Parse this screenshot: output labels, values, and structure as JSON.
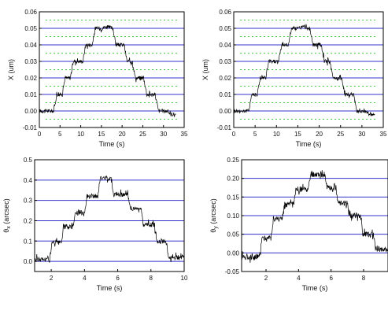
{
  "chart_data": [
    {
      "type": "line",
      "xlabel": "Time (s)",
      "ylabel": "X (um)",
      "xlim": [
        0,
        35
      ],
      "ylim": [
        -0.01,
        0.06
      ],
      "xticks": [
        "0",
        "5",
        "10",
        "15",
        "20",
        "25",
        "30",
        "35"
      ],
      "yticks": [
        "-0.01",
        "0.00",
        "0.01",
        "0.02",
        "0.03",
        "0.04",
        "0.05",
        "0.06"
      ],
      "grid": {
        "major_color": "#3333cc",
        "minor_color": "#44cc44",
        "minor_style": "dotted"
      },
      "line_color": "#000000",
      "noise": 0.0012,
      "series": [
        {
          "x": [
            0,
            3.5,
            4.2,
            5.5,
            6.2,
            7.5,
            8.2,
            10.5,
            11.2,
            12.8,
            13.5,
            15.2,
            16,
            17.8,
            18.5,
            20.5,
            21.2,
            22.5,
            23.2,
            25.2,
            26,
            28,
            28.8,
            31,
            31.7,
            33
          ],
          "y": [
            0.0,
            0.0,
            0.01,
            0.01,
            0.02,
            0.02,
            0.03,
            0.03,
            0.04,
            0.04,
            0.05,
            0.05,
            0.051,
            0.05,
            0.04,
            0.04,
            0.03,
            0.03,
            0.02,
            0.02,
            0.01,
            0.01,
            0.0,
            0.0,
            -0.002,
            -0.002
          ]
        }
      ]
    },
    {
      "type": "line",
      "xlabel": "Time (s)",
      "ylabel": "X (um)",
      "xlim": [
        0,
        35
      ],
      "ylim": [
        -0.01,
        0.06
      ],
      "xticks": [
        "0",
        "5",
        "10",
        "15",
        "20",
        "25",
        "30",
        "35"
      ],
      "yticks": [
        "-0.01",
        "0.00",
        "0.01",
        "0.02",
        "0.03",
        "0.04",
        "0.05",
        "0.06"
      ],
      "grid": {
        "major_color": "#3333cc",
        "minor_color": "#44cc44",
        "minor_style": "dotted"
      },
      "line_color": "#000000",
      "noise": 0.0012,
      "series": [
        {
          "x": [
            0,
            3.5,
            4.2,
            5.5,
            6.2,
            7.5,
            8.2,
            10.5,
            11.2,
            12.8,
            13.5,
            15.2,
            16,
            17.8,
            18.5,
            20.5,
            21.2,
            22.5,
            23.2,
            25.2,
            26,
            28,
            28.8,
            31,
            31.7,
            33
          ],
          "y": [
            0.0,
            0.0,
            0.01,
            0.01,
            0.02,
            0.02,
            0.03,
            0.03,
            0.04,
            0.04,
            0.05,
            0.05,
            0.051,
            0.05,
            0.04,
            0.04,
            0.03,
            0.03,
            0.02,
            0.02,
            0.01,
            0.01,
            0.0,
            0.0,
            -0.002,
            -0.002
          ]
        }
      ]
    },
    {
      "type": "line",
      "xlabel": "Time (s)",
      "ylabel_main": "θ",
      "ylabel_sub": "x",
      "ylabel_rest": " (arcsec)",
      "xlim": [
        1,
        10
      ],
      "ylim": [
        -0.05,
        0.5
      ],
      "xticks": [
        "2",
        "4",
        "6",
        "8",
        "10"
      ],
      "yticks": [
        "0.0",
        "0.1",
        "0.2",
        "0.3",
        "0.4",
        "0.5"
      ],
      "grid": {
        "major_color": "#3333cc"
      },
      "line_color": "#000000",
      "noise": 0.012,
      "series": [
        {
          "x": [
            1,
            1.9,
            2.05,
            2.6,
            2.75,
            3.3,
            3.45,
            4.0,
            4.15,
            4.8,
            4.95,
            5.6,
            5.75,
            6.6,
            6.75,
            7.4,
            7.55,
            8.2,
            8.35,
            8.9,
            9.05,
            10
          ],
          "y": [
            0.01,
            0.01,
            0.09,
            0.09,
            0.17,
            0.17,
            0.24,
            0.24,
            0.32,
            0.32,
            0.41,
            0.41,
            0.33,
            0.33,
            0.26,
            0.26,
            0.18,
            0.18,
            0.1,
            0.1,
            0.02,
            0.02
          ]
        }
      ]
    },
    {
      "type": "line",
      "xlabel": "Time (s)",
      "ylabel_main": "θ",
      "ylabel_sub": "y",
      "ylabel_rest": " (arcsec)",
      "xlim": [
        0.5,
        9.5
      ],
      "ylim": [
        -0.05,
        0.25
      ],
      "xticks": [
        "2",
        "4",
        "6",
        "8"
      ],
      "yticks": [
        "-0.05",
        "0.00",
        "0.05",
        "0.10",
        "0.15",
        "0.20",
        "0.25"
      ],
      "grid": {
        "major_color": "#3333cc"
      },
      "line_color": "#000000",
      "noise": 0.008,
      "series": [
        {
          "x": [
            0.5,
            1.6,
            1.75,
            2.3,
            2.45,
            3.0,
            3.15,
            3.7,
            3.85,
            4.6,
            4.75,
            5.6,
            5.75,
            6.3,
            6.45,
            7.0,
            7.15,
            7.8,
            7.95,
            8.6,
            8.75,
            9.5
          ],
          "y": [
            -0.01,
            -0.01,
            0.04,
            0.04,
            0.09,
            0.09,
            0.13,
            0.13,
            0.17,
            0.17,
            0.21,
            0.21,
            0.175,
            0.175,
            0.135,
            0.135,
            0.1,
            0.1,
            0.05,
            0.05,
            0.01,
            0.01
          ]
        }
      ]
    }
  ]
}
